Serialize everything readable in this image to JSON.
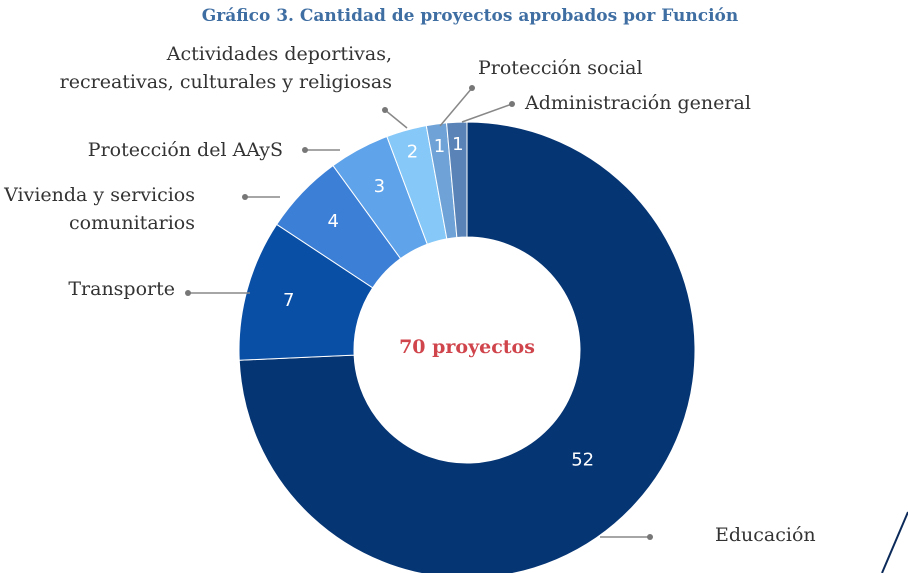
{
  "chart_data": {
    "type": "donut",
    "title": "Gráfico 3. Cantidad de proyectos aprobados por Función",
    "center_label": "70 proyectos",
    "categories": [
      "Educación",
      "Transporte",
      "Vivienda y servicios\ncomunitarios",
      "Protección del AAyS",
      "Actividades deportivas,\nrecreativas, culturales y religiosas",
      "Protección social",
      "Administración general"
    ],
    "values": [
      52,
      7,
      4,
      3,
      2,
      1,
      1
    ],
    "colors": [
      "#063574",
      "#0a4fa6",
      "#3c7fd6",
      "#5fa3ea",
      "#86c8f8",
      "#6fa3d8",
      "#5a84b8"
    ]
  }
}
